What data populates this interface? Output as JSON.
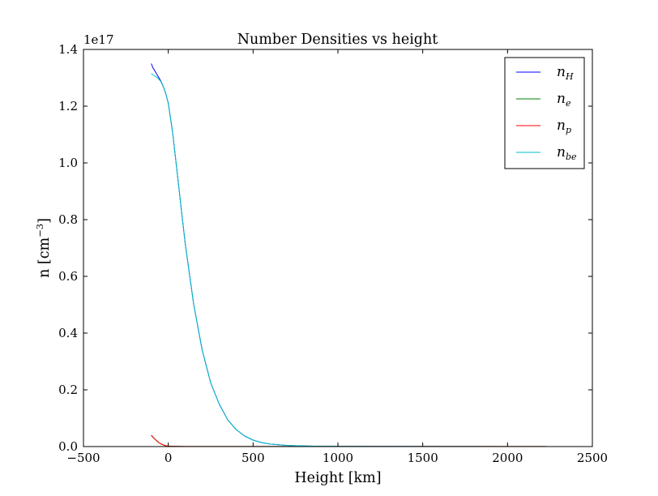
{
  "chart_data": {
    "type": "line",
    "title": "Number Densities vs height",
    "xlabel": "Height [km]",
    "ylabel_base": "n [cm",
    "ylabel_sup": "−3",
    "ylabel_close": "]",
    "y_offset_label": "1e17",
    "xlim": [
      -500,
      2500
    ],
    "ylim": [
      0,
      1.4
    ],
    "x_ticks": [
      -500,
      0,
      500,
      1000,
      1500,
      2000,
      2500
    ],
    "x_tick_labels": [
      "−500",
      "0",
      "500",
      "1000",
      "1500",
      "2000",
      "2500"
    ],
    "y_ticks": [
      0,
      0.2,
      0.4,
      0.6,
      0.8,
      1.0,
      1.2,
      1.4
    ],
    "y_tick_labels": [
      "0.0",
      "0.2",
      "0.4",
      "0.6",
      "0.8",
      "1.0",
      "1.2",
      "1.4"
    ],
    "grid": false,
    "legend_position": "top-right",
    "series": [
      {
        "name": "n_H",
        "legend_main": "n",
        "legend_sub": "H",
        "color": "#0000ff",
        "x": [
          -100,
          -90,
          -75,
          -60,
          -45,
          -30,
          -15,
          0,
          25,
          50,
          75,
          100,
          150,
          200,
          250,
          300,
          350,
          400,
          450,
          500,
          550,
          600,
          700,
          800,
          900,
          1000,
          1500,
          2000,
          2230
        ],
        "y": [
          1.35,
          1.335,
          1.32,
          1.305,
          1.29,
          1.27,
          1.245,
          1.21,
          1.11,
          0.98,
          0.845,
          0.715,
          0.5,
          0.34,
          0.225,
          0.15,
          0.095,
          0.06,
          0.037,
          0.023,
          0.014,
          0.009,
          0.004,
          0.002,
          0.001,
          0.0006,
          0.0002,
          0.0001,
          0.0001
        ]
      },
      {
        "name": "n_e",
        "legend_main": "n",
        "legend_sub": "e",
        "color": "#008000",
        "x": [
          -100,
          -90,
          -75,
          -60,
          -45,
          -30,
          -15,
          0,
          50,
          100,
          500,
          1000,
          1500,
          2000,
          2230
        ],
        "y": [
          0.04,
          0.033,
          0.024,
          0.016,
          0.01,
          0.006,
          0.003,
          0.0015,
          0.0005,
          0.0003,
          0.0002,
          0.0002,
          0.0002,
          0.0002,
          0.0002
        ]
      },
      {
        "name": "n_p",
        "legend_main": "n",
        "legend_sub": "p",
        "color": "#ff0000",
        "x": [
          -100,
          -90,
          -75,
          -60,
          -45,
          -30,
          -15,
          0,
          50,
          100,
          500,
          1000,
          1500,
          2000,
          2230
        ],
        "y": [
          0.04,
          0.033,
          0.024,
          0.016,
          0.01,
          0.006,
          0.003,
          0.0015,
          0.0005,
          0.0003,
          0.0002,
          0.0002,
          0.0002,
          0.0002,
          0.0002
        ]
      },
      {
        "name": "n_be",
        "legend_main": "n",
        "legend_sub": "be",
        "color": "#00bfbf",
        "x": [
          -100,
          -90,
          -75,
          -60,
          -45,
          -30,
          -15,
          0,
          25,
          50,
          75,
          100,
          150,
          200,
          250,
          300,
          350,
          400,
          450,
          500,
          550,
          600,
          700,
          800,
          900,
          1000,
          1500,
          2000,
          2230
        ],
        "y": [
          1.315,
          1.31,
          1.305,
          1.298,
          1.288,
          1.27,
          1.245,
          1.21,
          1.11,
          0.98,
          0.845,
          0.715,
          0.5,
          0.34,
          0.225,
          0.15,
          0.095,
          0.06,
          0.037,
          0.023,
          0.014,
          0.009,
          0.004,
          0.002,
          0.001,
          0.0006,
          0.0002,
          0.0001,
          0.0001
        ]
      }
    ]
  }
}
